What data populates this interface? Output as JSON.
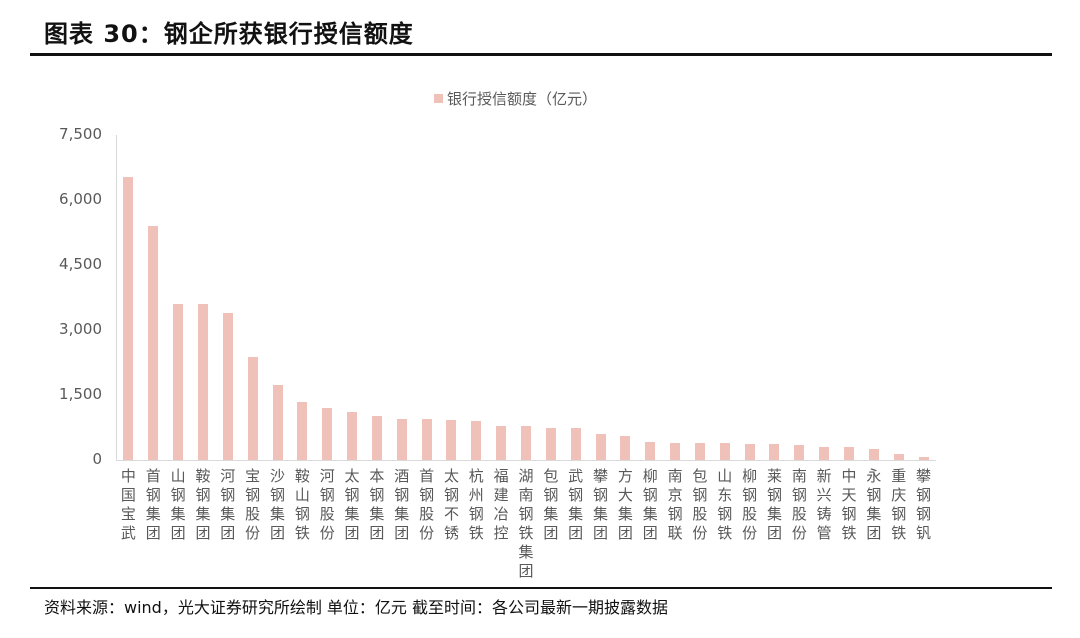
{
  "header": {
    "title": "图表 30：钢企所获银行授信额度"
  },
  "legend": {
    "label": "银行授信额度（亿元）",
    "color": "#efc1b9"
  },
  "footer": {
    "source": "资料来源：wind，光大证券研究所绘制 单位：亿元 截至时间：各公司最新一期披露数据"
  },
  "axis": {
    "yticks": [
      "0",
      "1,500",
      "3,000",
      "4,500",
      "6,000",
      "7,500"
    ],
    "ytick_values": [
      0,
      1500,
      3000,
      4500,
      6000,
      7500
    ]
  },
  "chart_data": {
    "type": "bar",
    "title": "图表 30：钢企所获银行授信额度",
    "xlabel": "",
    "ylabel": "",
    "ylim": [
      0,
      7500
    ],
    "yticks": [
      0,
      1500,
      3000,
      4500,
      6000,
      7500
    ],
    "grid": false,
    "legend_position": "top",
    "categories": [
      "中国宝武",
      "首钢集团",
      "山钢集团",
      "鞍钢集团",
      "河钢集团",
      "宝钢股份",
      "沙钢集团",
      "鞍山钢铁",
      "河钢股份",
      "太钢集团",
      "本钢集团",
      "酒钢集团",
      "首钢股份",
      "太钢不锈",
      "杭州钢铁",
      "福建冶控",
      "湖南钢铁集团",
      "包钢集团",
      "武钢集团",
      "攀钢集团",
      "方大集团",
      "柳钢集团",
      "南京钢联",
      "包钢股份",
      "山东钢铁",
      "柳钢股份",
      "莱钢集团",
      "南钢股份",
      "新兴铸管",
      "中天钢铁",
      "永钢集团",
      "重庆钢铁",
      "攀钢钢钒"
    ],
    "series": [
      {
        "name": "银行授信额度（亿元）",
        "color": "#efc1b9",
        "values": [
          6530,
          5400,
          3600,
          3600,
          3390,
          2380,
          1730,
          1340,
          1200,
          1110,
          1010,
          950,
          950,
          920,
          900,
          780,
          780,
          740,
          740,
          600,
          550,
          420,
          390,
          390,
          390,
          370,
          360,
          340,
          310,
          290,
          250,
          140,
          70
        ]
      }
    ]
  }
}
